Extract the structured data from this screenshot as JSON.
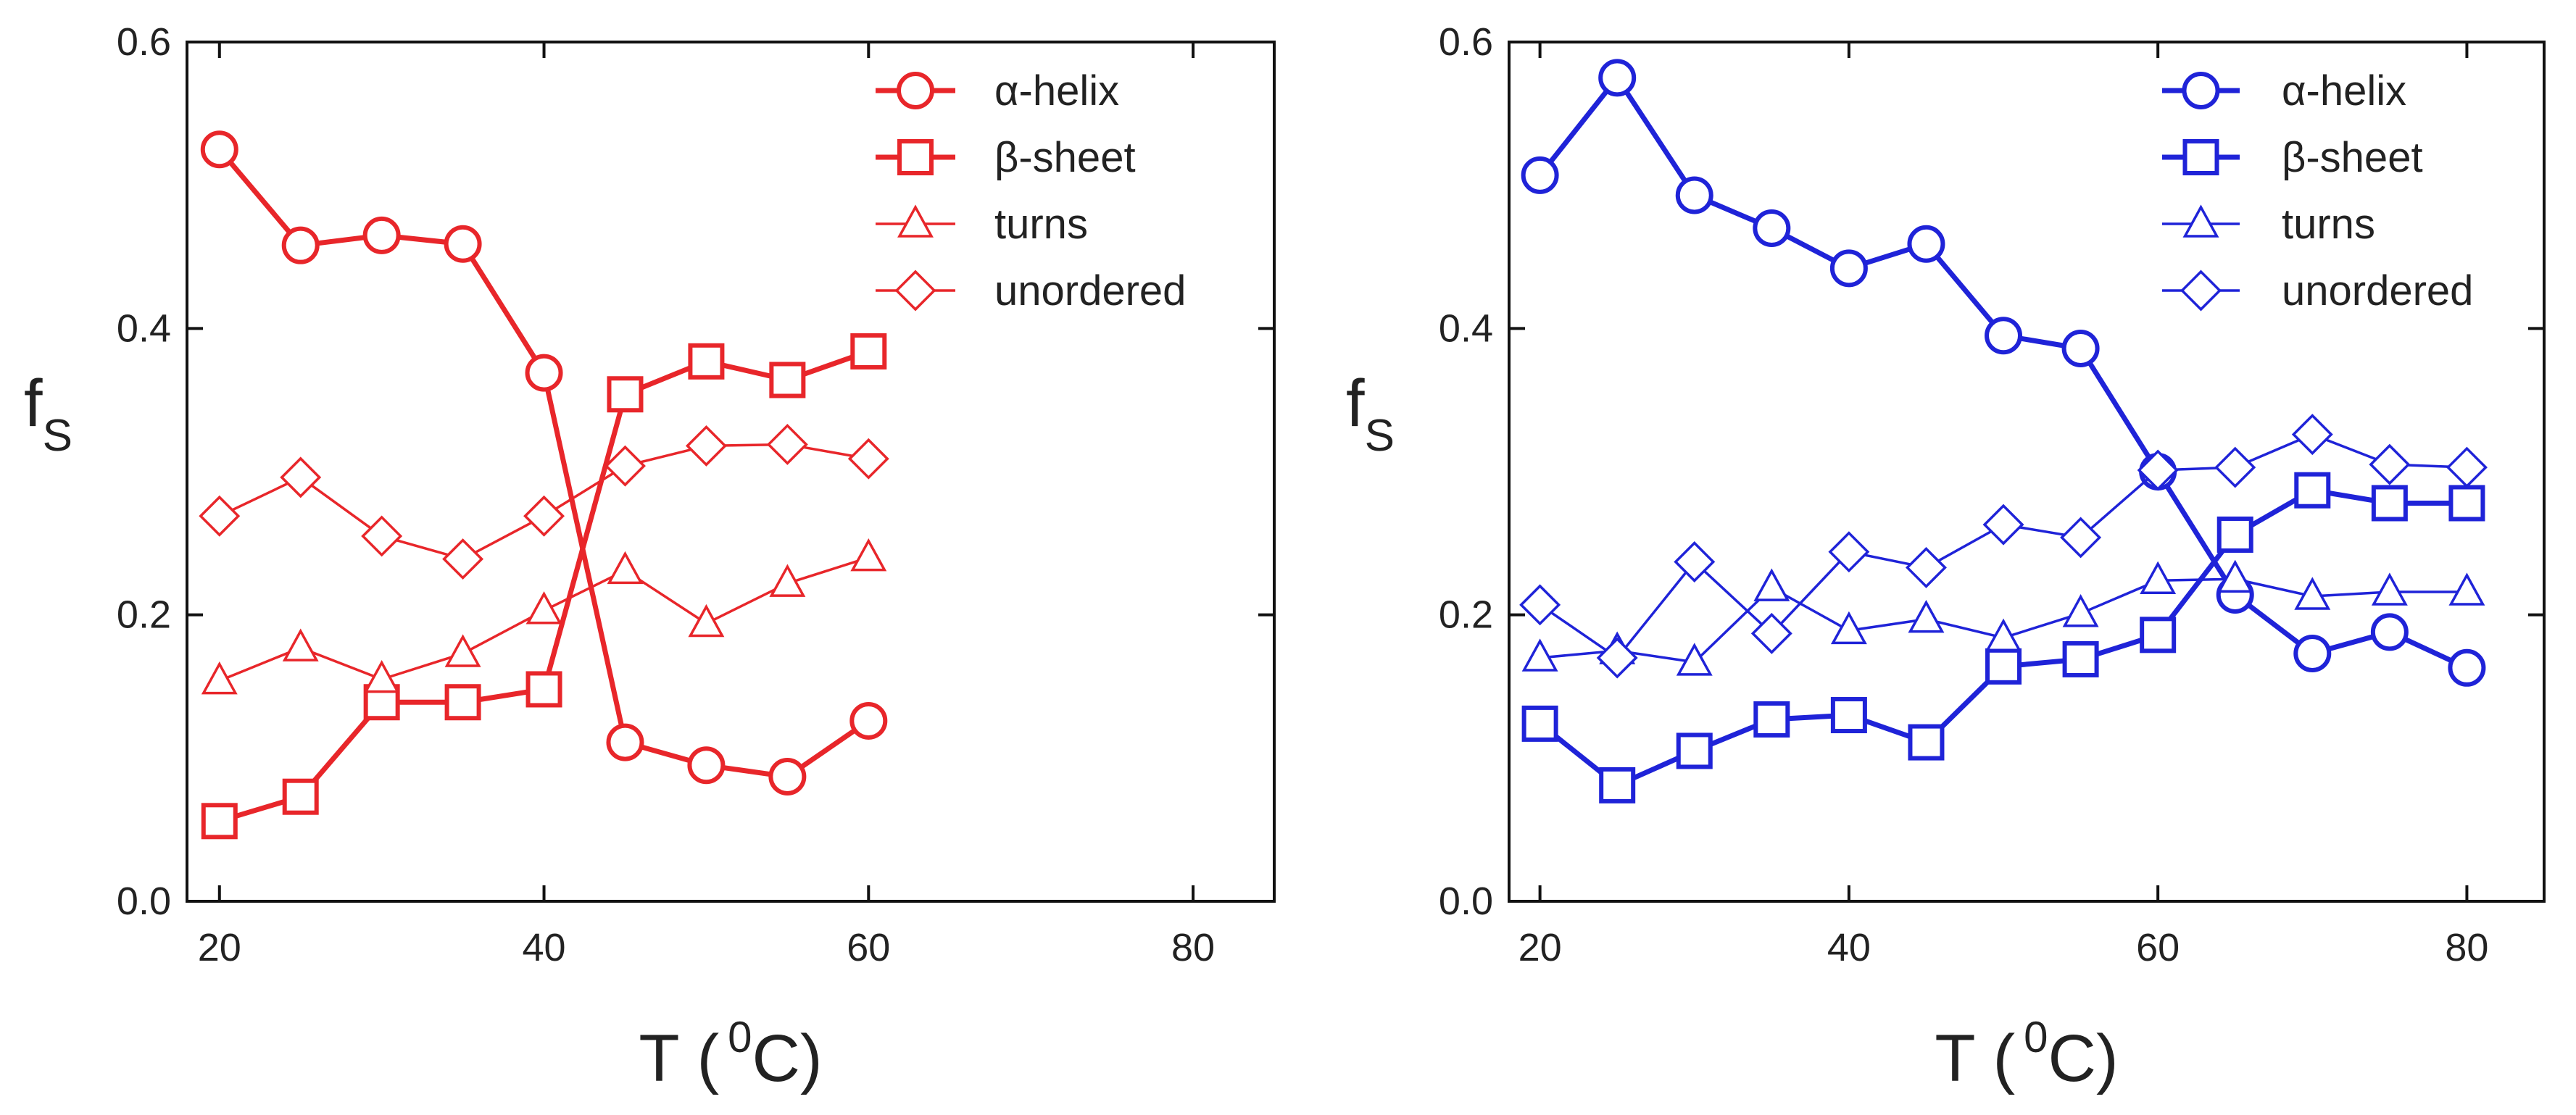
{
  "chart_data": [
    {
      "type": "line",
      "color": "#e8262a",
      "xlabel_main": "T (",
      "xlabel_sup": "0",
      "xlabel_end": "C)",
      "ylabel_main": "f",
      "ylabel_sub": "S",
      "xlim": [
        18,
        85
      ],
      "ylim": [
        0,
        0.6
      ],
      "xticks": [
        20,
        40,
        60,
        80
      ],
      "xtick_labels": [
        "20",
        "40",
        "60",
        "80"
      ],
      "yticks": [
        0,
        0.2,
        0.4,
        0.6
      ],
      "ytick_labels": [
        "0.0",
        "0.2",
        "0.4",
        "0.6"
      ],
      "grid": false,
      "legend_position": "top-right",
      "x": [
        20,
        25,
        30,
        35,
        40,
        45,
        50,
        55,
        60
      ],
      "series": [
        {
          "name": "α-helix",
          "marker": "circle",
          "weight": "thick",
          "values": [
            0.525,
            0.458,
            0.465,
            0.459,
            0.369,
            0.111,
            0.095,
            0.087,
            0.126
          ]
        },
        {
          "name": "β-sheet",
          "marker": "square",
          "weight": "thick",
          "values": [
            0.056,
            0.073,
            0.139,
            0.139,
            0.148,
            0.354,
            0.377,
            0.364,
            0.384
          ]
        },
        {
          "name": "turns",
          "marker": "triangle",
          "weight": "thin",
          "values": [
            0.154,
            0.177,
            0.155,
            0.173,
            0.203,
            0.231,
            0.194,
            0.222,
            0.24
          ]
        },
        {
          "name": "unordered",
          "marker": "diamond",
          "weight": "thin",
          "values": [
            0.269,
            0.296,
            0.255,
            0.239,
            0.269,
            0.304,
            0.318,
            0.319,
            0.309
          ]
        }
      ]
    },
    {
      "type": "line",
      "color": "#1f23d8",
      "xlabel_main": "T (",
      "xlabel_sup": "0",
      "xlabel_end": "C)",
      "ylabel_main": "f",
      "ylabel_sub": "S",
      "xlim": [
        18,
        85
      ],
      "ylim": [
        0,
        0.6
      ],
      "xticks": [
        20,
        40,
        60,
        80
      ],
      "xtick_labels": [
        "20",
        "40",
        "60",
        "80"
      ],
      "yticks": [
        0,
        0.2,
        0.4,
        0.6
      ],
      "ytick_labels": [
        "0.0",
        "0.2",
        "0.4",
        "0.6"
      ],
      "grid": false,
      "legend_position": "top-right",
      "x": [
        20,
        25,
        30,
        35,
        40,
        45,
        50,
        55,
        60,
        65,
        70,
        75,
        80
      ],
      "series": [
        {
          "name": "α-helix",
          "marker": "circle",
          "weight": "thick",
          "values": [
            0.507,
            0.575,
            0.493,
            0.47,
            0.442,
            0.459,
            0.395,
            0.386,
            0.3,
            0.214,
            0.173,
            0.188,
            0.163
          ]
        },
        {
          "name": "β-sheet",
          "marker": "square",
          "weight": "thick",
          "values": [
            0.124,
            0.081,
            0.105,
            0.127,
            0.13,
            0.111,
            0.164,
            0.169,
            0.186,
            0.256,
            0.287,
            0.278,
            0.278
          ]
        },
        {
          "name": "turns",
          "marker": "triangle",
          "weight": "thin",
          "values": [
            0.17,
            0.175,
            0.167,
            0.219,
            0.189,
            0.197,
            0.184,
            0.201,
            0.224,
            0.225,
            0.213,
            0.216,
            0.216
          ]
        },
        {
          "name": "unordered",
          "marker": "diamond",
          "weight": "thin",
          "values": [
            0.207,
            0.17,
            0.237,
            0.187,
            0.244,
            0.233,
            0.263,
            0.254,
            0.301,
            0.303,
            0.326,
            0.305,
            0.303
          ]
        }
      ]
    }
  ]
}
